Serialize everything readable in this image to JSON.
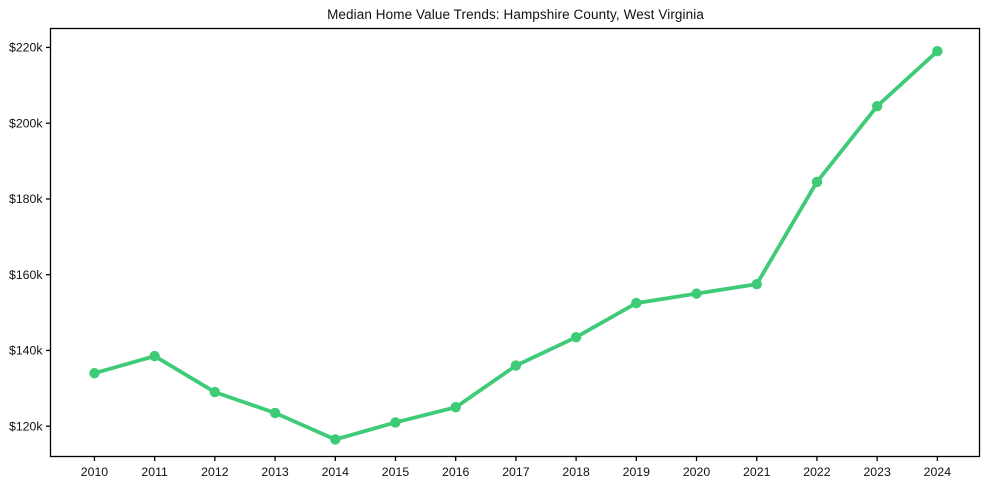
{
  "figure": {
    "background": "#ffffff",
    "axes_color": "#000000",
    "text_color": "#111111"
  },
  "chart_data": {
    "type": "line",
    "title": "Median Home Value Trends: Hampshire County, West Virginia",
    "x": [
      2010,
      2011,
      2012,
      2013,
      2014,
      2015,
      2016,
      2017,
      2018,
      2019,
      2020,
      2021,
      2022,
      2023,
      2024
    ],
    "series": [
      {
        "name": "Median Home Value",
        "color": "#3ecb78",
        "marker": "circle",
        "values": [
          134000,
          138500,
          129000,
          123500,
          116500,
          121000,
          125000,
          136000,
          143500,
          152500,
          155000,
          157500,
          184500,
          204500,
          219000
        ]
      }
    ],
    "xlabel": "",
    "ylabel": "",
    "xtick_labels": [
      "2010",
      "2011",
      "2012",
      "2013",
      "2014",
      "2015",
      "2016",
      "2017",
      "2018",
      "2019",
      "2020",
      "2021",
      "2022",
      "2023",
      "2024"
    ],
    "ytick_values": [
      120000,
      140000,
      160000,
      180000,
      200000,
      220000
    ],
    "ytick_labels": [
      "$120k",
      "$140k",
      "$160k",
      "$180k",
      "$200k",
      "$220k"
    ],
    "xlim": [
      2009.27,
      2024.7
    ],
    "ylim": [
      112000,
      225000
    ],
    "grid": false,
    "legend_position": "none"
  }
}
